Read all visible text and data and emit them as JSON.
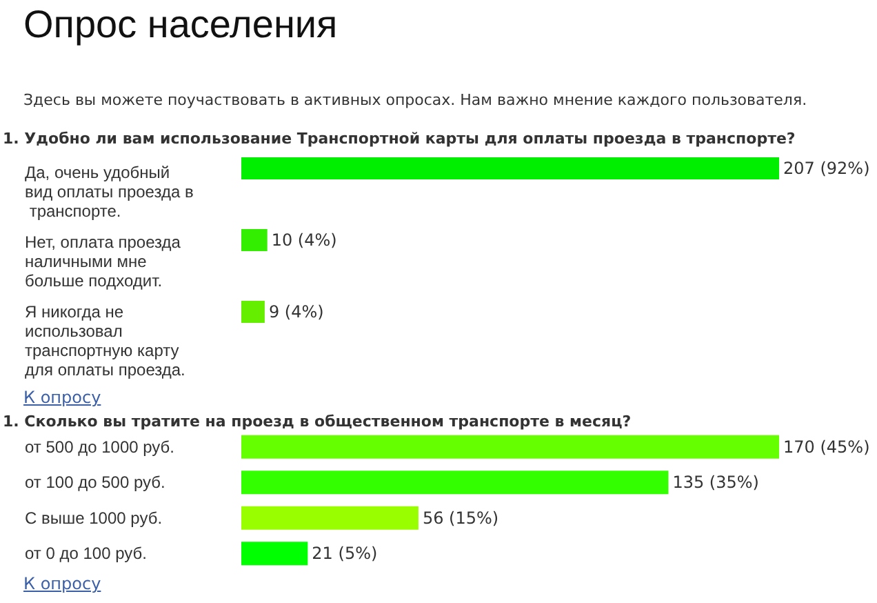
{
  "chart_data": [
    {
      "type": "other",
      "title": "Опрос населения",
      "subtitle": "Здесь вы можете поучаствовать в активных опросах. Нам важно мнение каждого пользователя."
    },
    {
      "type": "bar",
      "orientation": "horizontal",
      "title": "1. Удобно ли вам использование Транспортной карты для оплаты проезда в транспорте?",
      "categories": [
        "Да, очень удобный вид оплаты проезда в транспорте.",
        "Нет, оплата проезда наличными мне больше подходит.",
        "Я никогда не использовал транспортную карту для оплаты проезда."
      ],
      "values": [
        207,
        10,
        9
      ],
      "value_labels": [
        "207 (92%)",
        "10 (4%)",
        "9 (4%)"
      ],
      "colors": [
        "#00ee00",
        "#33ee00",
        "#66ee00"
      ],
      "annotations": [
        "К опросу"
      ]
    },
    {
      "type": "bar",
      "orientation": "horizontal",
      "title": "1. Сколько вы тратите на проезд в общественном транспорте в месяц?",
      "categories": [
        "от 500 до 1000 руб.",
        "от 100 до 500 руб.",
        "С выше 1000 руб.",
        "от 0 до 100 руб."
      ],
      "values": [
        170,
        135,
        56,
        21
      ],
      "value_labels": [
        "170 (45%)",
        "135 (35%)",
        "56 (15%)",
        "21 (5%)"
      ],
      "colors": [
        "#66ff00",
        "#33ff00",
        "#99ff00",
        "#00ff00"
      ],
      "annotations": [
        "К опросу"
      ]
    }
  ]
}
